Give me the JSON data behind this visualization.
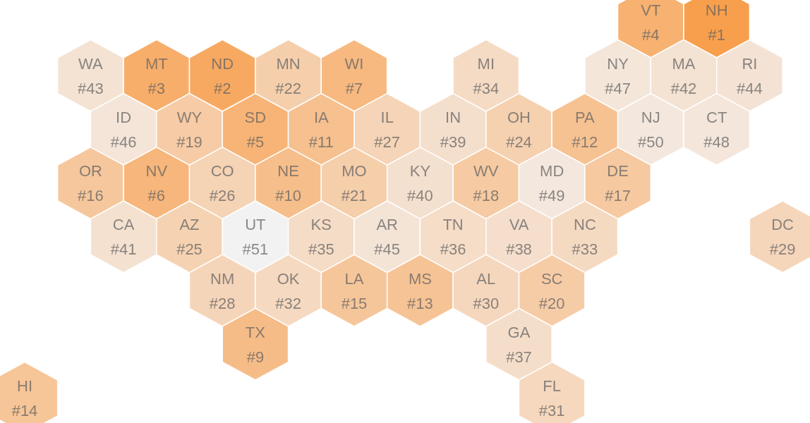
{
  "chart_data": {
    "type": "other",
    "categories": [
      "VT",
      "NH",
      "WA",
      "MT",
      "ND",
      "MN",
      "WI",
      "MI",
      "NY",
      "MA",
      "RI",
      "ID",
      "WY",
      "SD",
      "IA",
      "IL",
      "IN",
      "OH",
      "PA",
      "NJ",
      "CT",
      "OR",
      "NV",
      "CO",
      "NE",
      "MO",
      "KY",
      "WV",
      "MD",
      "DE",
      "CA",
      "AZ",
      "UT",
      "KS",
      "AR",
      "TN",
      "VA",
      "NC",
      "DC",
      "NM",
      "OK",
      "LA",
      "MS",
      "AL",
      "SC",
      "TX",
      "GA",
      "HI",
      "FL"
    ],
    "values": [
      4,
      1,
      43,
      3,
      2,
      22,
      7,
      34,
      47,
      42,
      44,
      46,
      19,
      5,
      11,
      27,
      39,
      24,
      12,
      50,
      48,
      16,
      6,
      26,
      10,
      21,
      40,
      18,
      49,
      17,
      41,
      25,
      51,
      35,
      45,
      36,
      38,
      33,
      29,
      28,
      32,
      15,
      13,
      30,
      20,
      9,
      37,
      14,
      31
    ],
    "value_labels": [
      "#4",
      "#1",
      "#43",
      "#3",
      "#2",
      "#22",
      "#7",
      "#34",
      "#47",
      "#42",
      "#44",
      "#46",
      "#19",
      "#5",
      "#11",
      "#27",
      "#39",
      "#24",
      "#12",
      "#50",
      "#48",
      "#16",
      "#6",
      "#26",
      "#10",
      "#21",
      "#40",
      "#18",
      "#49",
      "#17",
      "#41",
      "#25",
      "#51",
      "#35",
      "#45",
      "#36",
      "#38",
      "#33",
      "#29",
      "#28",
      "#32",
      "#15",
      "#13",
      "#30",
      "#20",
      "#9",
      "#37",
      "#14",
      "#31"
    ]
  }
}
